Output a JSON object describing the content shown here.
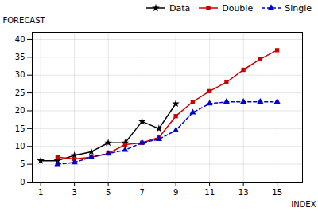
{
  "chart_data": {
    "type": "line",
    "x": [
      1,
      2,
      3,
      4,
      5,
      6,
      7,
      8,
      9,
      10,
      11,
      12,
      13,
      14,
      15
    ],
    "series": [
      {
        "name": "Data",
        "color": "#000000",
        "marker": "star",
        "line_style": "solid",
        "values": [
          6,
          6,
          7.5,
          8.5,
          11,
          11,
          17,
          15,
          22,
          null,
          null,
          null,
          null,
          null,
          null
        ]
      },
      {
        "name": "Double",
        "color": "#cc0000",
        "marker": "square",
        "line_style": "solid",
        "values": [
          null,
          7,
          6.5,
          7,
          8,
          10.5,
          11,
          12.5,
          18.5,
          22.5,
          25.5,
          28,
          31.5,
          34.5,
          37
        ]
      },
      {
        "name": "Single",
        "color": "#0000cc",
        "marker": "triangle",
        "line_style": "dashed",
        "values": [
          null,
          5,
          5.5,
          7,
          8,
          9,
          11,
          12,
          14.5,
          19.5,
          22,
          22.5,
          22.5,
          22.5,
          22.5
        ]
      }
    ],
    "xlabel": "INDEX",
    "ylabel": "FORECAST",
    "xlim": [
      0.5,
      16.5
    ],
    "ylim": [
      0,
      42
    ],
    "xticks": [
      1,
      3,
      5,
      7,
      9,
      11,
      13,
      15
    ],
    "yticks": [
      0,
      5,
      10,
      15,
      20,
      25,
      30,
      35,
      40
    ],
    "grid": true,
    "legend": "right"
  }
}
